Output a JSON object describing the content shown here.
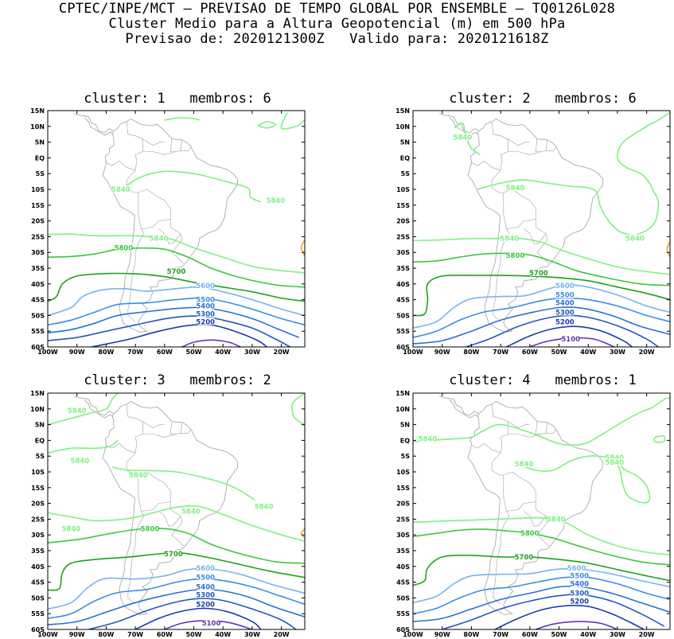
{
  "header": {
    "line1": "CPTEC/INPE/MCT – PREVISAO DE TEMPO GLOBAL POR ENSEMBLE – TQ0126L028",
    "line2": "Cluster Medio para a Altura Geopotencial (m) em 500 hPa",
    "line3": "Previsao de: 2020121300Z   Valido para: 2020121618Z"
  },
  "lat_labels": [
    "15N",
    "10N",
    "5N",
    "EQ",
    "5S",
    "10S",
    "15S",
    "20S",
    "25S",
    "30S",
    "35S",
    "40S",
    "45S",
    "50S",
    "55S",
    "60S"
  ],
  "lon_labels": [
    "100W",
    "90W",
    "80W",
    "70W",
    "60W",
    "50W",
    "40W",
    "30W",
    "20W"
  ],
  "colors": {
    "c5840": "#80f080",
    "c5800": "#3cc83c",
    "c5700": "#1ea01e",
    "c5600": "#78b4f0",
    "c5500": "#3c8ce6",
    "c5400": "#2a70d2",
    "c5300": "#2258be",
    "c5200": "#1a3ca8",
    "c5100": "#6432b4",
    "c5900": "#f0a028",
    "coast": "#a0a0a0"
  },
  "panels": [
    {
      "title": "cluster: 1   membros: 6",
      "labels": [
        {
          "text": "5840",
          "c": "c5840",
          "x": -75,
          "y": -10
        },
        {
          "text": "5840",
          "c": "c5840",
          "x": -22,
          "y": -13.5
        },
        {
          "text": "5840",
          "c": "c5840",
          "x": -62,
          "y": -25.5
        },
        {
          "text": "5800",
          "c": "c5800",
          "x": -74,
          "y": -28.5
        },
        {
          "text": "5700",
          "c": "c5700",
          "x": -56,
          "y": -36
        },
        {
          "text": "5600",
          "c": "c5600",
          "x": -46,
          "y": -40.5
        },
        {
          "text": "5500",
          "c": "c5500",
          "x": -46,
          "y": -45
        },
        {
          "text": "5400",
          "c": "c5400",
          "x": -46,
          "y": -47
        },
        {
          "text": "5300",
          "c": "c5300",
          "x": -46,
          "y": -49.5
        },
        {
          "text": "5200",
          "c": "c5200",
          "x": -46,
          "y": -52
        }
      ]
    },
    {
      "title": "cluster: 2   membros: 6",
      "labels": [
        {
          "text": "5840",
          "c": "c5840",
          "x": -83,
          "y": 6.5
        },
        {
          "text": "5840",
          "c": "c5840",
          "x": -65,
          "y": -9.5
        },
        {
          "text": "5840",
          "c": "c5840",
          "x": -24,
          "y": -25.5
        },
        {
          "text": "5840",
          "c": "c5840",
          "x": -67,
          "y": -25.5
        },
        {
          "text": "5800",
          "c": "c5800",
          "x": -65,
          "y": -31
        },
        {
          "text": "5700",
          "c": "c5700",
          "x": -57,
          "y": -36.5
        },
        {
          "text": "5600",
          "c": "c5600",
          "x": -48,
          "y": -40.5
        },
        {
          "text": "5500",
          "c": "c5500",
          "x": -48,
          "y": -43.5
        },
        {
          "text": "5400",
          "c": "c5400",
          "x": -48,
          "y": -46
        },
        {
          "text": "5300",
          "c": "c5300",
          "x": -48,
          "y": -49
        },
        {
          "text": "5200",
          "c": "c5200",
          "x": -48,
          "y": -52
        },
        {
          "text": "5100",
          "c": "c5100",
          "x": -46,
          "y": -57.5
        }
      ]
    },
    {
      "title": "cluster: 3   membros: 2",
      "labels": [
        {
          "text": "5840",
          "c": "c5840",
          "x": -90,
          "y": 9.5
        },
        {
          "text": "5840",
          "c": "c5840",
          "x": -89,
          "y": -6.5
        },
        {
          "text": "5840",
          "c": "c5840",
          "x": -69,
          "y": -11
        },
        {
          "text": "5840",
          "c": "c5840",
          "x": -26,
          "y": -21
        },
        {
          "text": "5840",
          "c": "c5840",
          "x": -51,
          "y": -22.5
        },
        {
          "text": "5840",
          "c": "c5840",
          "x": -92,
          "y": -28
        },
        {
          "text": "5800",
          "c": "c5800",
          "x": -65,
          "y": -28
        },
        {
          "text": "5700",
          "c": "c5700",
          "x": -57,
          "y": -36
        },
        {
          "text": "5600",
          "c": "c5600",
          "x": -46,
          "y": -40.5
        },
        {
          "text": "5500",
          "c": "c5500",
          "x": -46,
          "y": -43.5
        },
        {
          "text": "5400",
          "c": "c5400",
          "x": -46,
          "y": -46.5
        },
        {
          "text": "5300",
          "c": "c5300",
          "x": -46,
          "y": -49
        },
        {
          "text": "5200",
          "c": "c5200",
          "x": -46,
          "y": -52
        },
        {
          "text": "5100",
          "c": "c5100",
          "x": -44,
          "y": -58
        }
      ]
    },
    {
      "title": "cluster: 4   membros: 1",
      "labels": [
        {
          "text": "5840",
          "c": "c5840",
          "x": -95,
          "y": 0.5
        },
        {
          "text": "5840",
          "c": "c5840",
          "x": -62,
          "y": -7.5
        },
        {
          "text": "5840",
          "c": "c5840",
          "x": -31,
          "y": -5.5
        },
        {
          "text": "5840",
          "c": "c5840",
          "x": -31,
          "y": -7
        },
        {
          "text": "5840",
          "c": "c5840",
          "x": -51,
          "y": -25
        },
        {
          "text": "5800",
          "c": "c5800",
          "x": -60,
          "y": -29.5
        },
        {
          "text": "5700",
          "c": "c5700",
          "x": -62,
          "y": -37
        },
        {
          "text": "5600",
          "c": "c5600",
          "x": -44,
          "y": -40.5
        },
        {
          "text": "5500",
          "c": "c5500",
          "x": -43,
          "y": -43
        },
        {
          "text": "5400",
          "c": "c5400",
          "x": -43,
          "y": -45.5
        },
        {
          "text": "5300",
          "c": "c5300",
          "x": -43,
          "y": -48.5
        },
        {
          "text": "5200",
          "c": "c5200",
          "x": -43,
          "y": -51
        }
      ]
    }
  ]
}
